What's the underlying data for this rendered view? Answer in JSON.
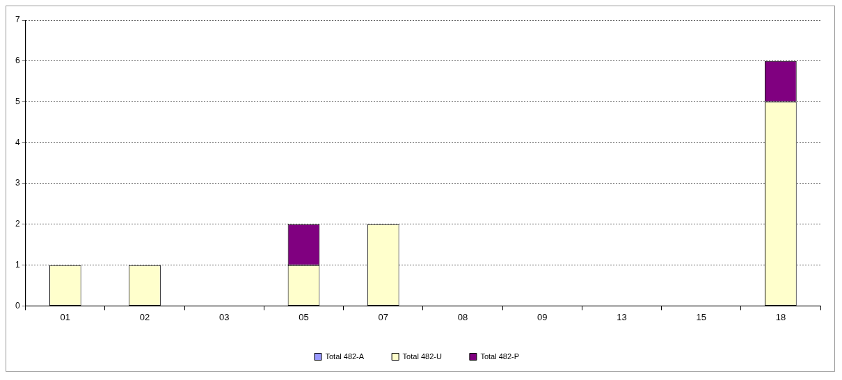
{
  "chart_data": {
    "type": "bar",
    "stacked": true,
    "categories": [
      "01",
      "02",
      "03",
      "05",
      "07",
      "08",
      "09",
      "13",
      "15",
      "18"
    ],
    "series": [
      {
        "name": "Total 482-A",
        "color": "#9999ff",
        "values": [
          0,
          0,
          0,
          0,
          0,
          0,
          0,
          0,
          0,
          0
        ]
      },
      {
        "name": "Total 482-U",
        "color": "#ffffcc",
        "values": [
          1,
          1,
          0,
          1,
          2,
          0,
          0,
          0,
          0,
          5
        ]
      },
      {
        "name": "Total 482-P",
        "color": "#800080",
        "values": [
          0,
          0,
          0,
          1,
          0,
          0,
          0,
          0,
          0,
          1
        ]
      }
    ],
    "ylim": [
      0,
      7
    ],
    "yticks": [
      0,
      1,
      2,
      3,
      4,
      5,
      6,
      7
    ],
    "grid": "y",
    "legend": "bottom"
  }
}
